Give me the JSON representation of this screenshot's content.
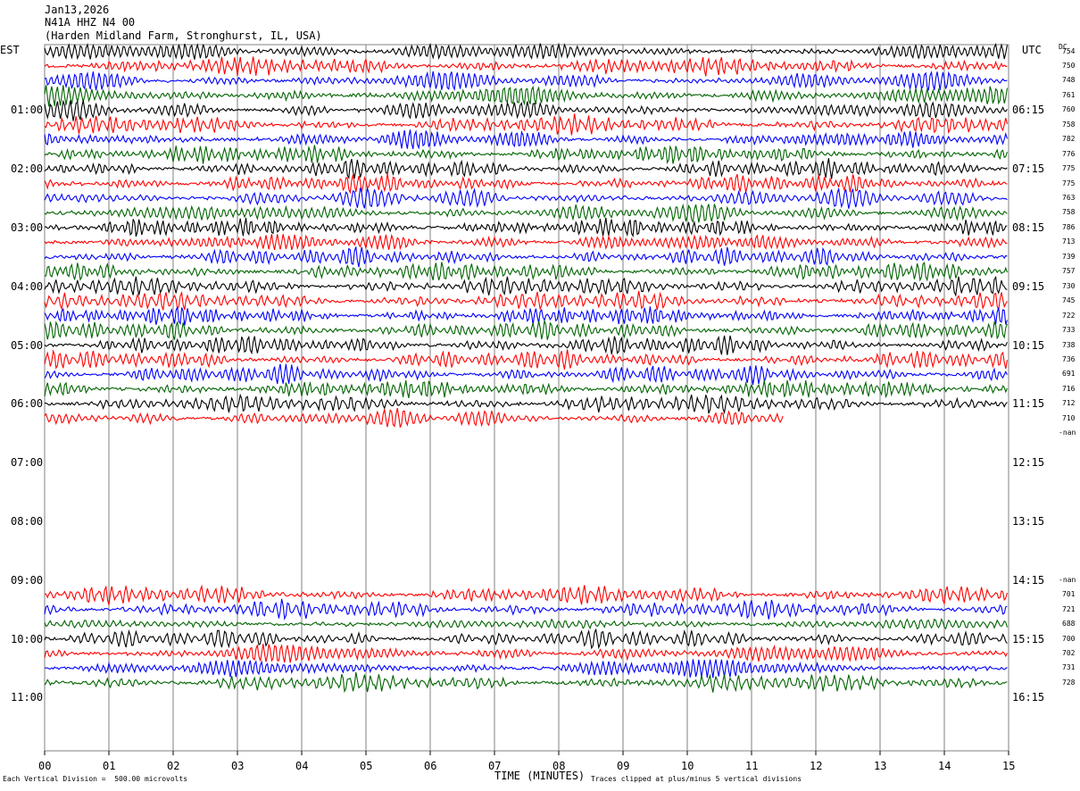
{
  "header": {
    "date": "Jan13,2026",
    "station": "N41A HHZ N4 00",
    "location": "(Harden Midland Farm, Stronghurst, IL, USA)"
  },
  "left_timezone": "EST",
  "right_timezone": "UTC",
  "dc_label": "DC",
  "footer": {
    "scale": "Each Vertical Division =  500.00 microvolts",
    "xlabel": "TIME (MINUTES)",
    "clip_note": "Traces clipped at plus/minus 5 vertical divisions"
  },
  "colors": {
    "trace_cycle": [
      "#000000",
      "#ff0000",
      "#0000ff",
      "#006400"
    ],
    "grid": "#808080"
  },
  "chart_data": {
    "type": "line",
    "title": "N41A HHZ N4 00",
    "xlabel": "TIME (MINUTES)",
    "xlim": [
      0,
      15
    ],
    "x_ticks": [
      "00",
      "01",
      "02",
      "03",
      "04",
      "05",
      "06",
      "07",
      "08",
      "09",
      "10",
      "11",
      "12",
      "13",
      "14",
      "15"
    ],
    "left_hour_labels": [
      "01:00",
      "02:00",
      "03:00",
      "04:00",
      "05:00",
      "06:00",
      "07:00",
      "08:00",
      "09:00",
      "10:00",
      "11:00"
    ],
    "right_hour_labels": [
      "06:15",
      "07:15",
      "08:15",
      "09:15",
      "10:15",
      "11:15",
      "12:15",
      "13:15",
      "14:15",
      "15:15",
      "16:15"
    ],
    "minutes_per_line": 15,
    "lines_per_hour": 4,
    "grid": true,
    "dc_offsets": [
      "754",
      "750",
      "748",
      "761",
      "760",
      "758",
      "782",
      "776",
      "775",
      "775",
      "763",
      "758",
      "786",
      "713",
      "739",
      "757",
      "730",
      "745",
      "722",
      "733",
      "738",
      "736",
      "691",
      "716",
      "712",
      "710",
      "-nan",
      "",
      "",
      "",
      "",
      "",
      "",
      "",
      "",
      "",
      "-nan",
      "701",
      "721",
      "688",
      "700",
      "702",
      "731",
      "728"
    ],
    "trace_segments": [
      {
        "start_line": 0,
        "end_line": 25,
        "end_minute_last_line": 11.5
      },
      {
        "start_line": 37,
        "end_line": 43,
        "end_minute_last_line": 15
      }
    ]
  }
}
